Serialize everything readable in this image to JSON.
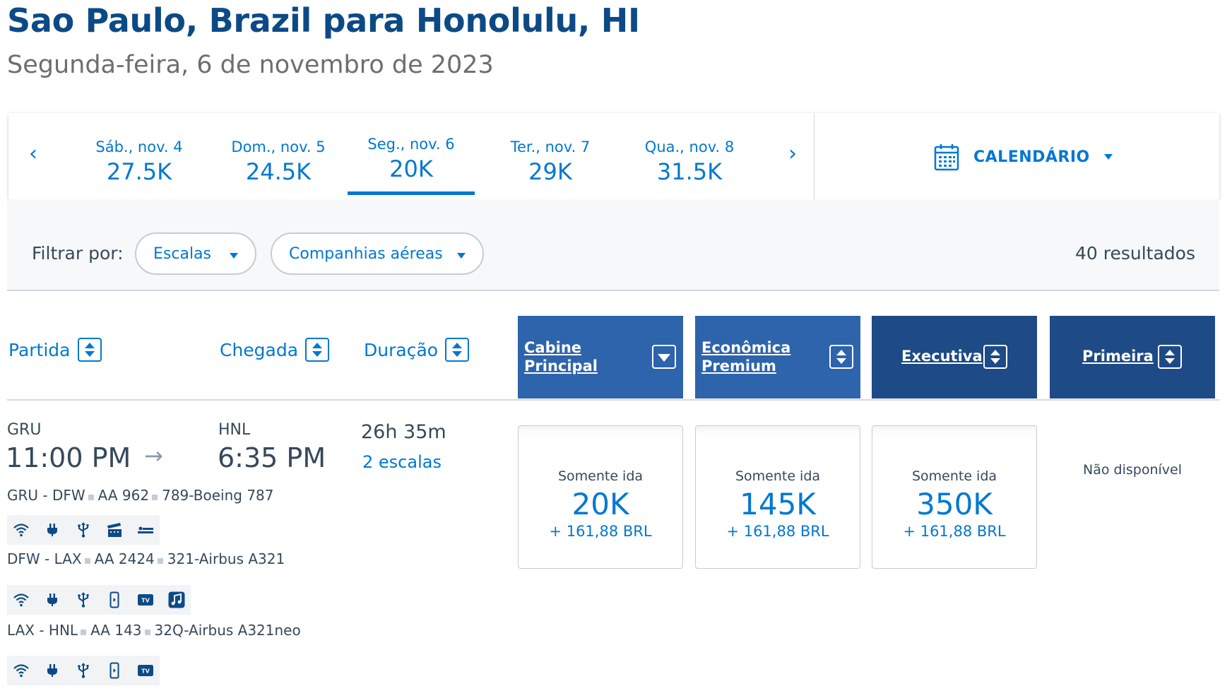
{
  "header": {
    "title": "Sao Paulo, Brazil para Honolulu, HI",
    "subtitle": "Segunda-feira, 6 de novembro de 2023"
  },
  "date_strip": {
    "dates": [
      {
        "day": "Sáb., nov. 4",
        "price": "27.5K"
      },
      {
        "day": "Dom., nov. 5",
        "price": "24.5K"
      },
      {
        "day": "Seg., nov. 6",
        "price": "20K",
        "selected": true
      },
      {
        "day": "Ter., nov. 7",
        "price": "29K"
      },
      {
        "day": "Qua., nov. 8",
        "price": "31.5K"
      }
    ],
    "prev_glyph": "‹",
    "next_glyph": "›",
    "calendar_label": "CALENDÁRIO"
  },
  "filters": {
    "label": "Filtrar por:",
    "stops": "Escalas",
    "airlines": "Companhias aéreas",
    "results": "40 resultados"
  },
  "columns": {
    "departure": "Partida",
    "arrival": "Chegada",
    "duration": "Duração",
    "cabins": [
      {
        "line1": "Cabine",
        "line2": "Principal"
      },
      {
        "line1": "Econômica",
        "line2": "Premium"
      },
      {
        "line1": "Executiva"
      },
      {
        "line1": "Primeira"
      }
    ]
  },
  "flight": {
    "origin": "GRU",
    "destination": "HNL",
    "depart_time": "11:00 PM",
    "arrive_time": "6:35 PM",
    "duration": "26h 35m",
    "stops": "2 escalas",
    "segments": [
      {
        "route": "GRU - DFW",
        "flight": "AA 962",
        "aircraft": "789-Boeing 787",
        "amenities": [
          "wifi-icon",
          "power-outlet-icon",
          "usb-icon",
          "film-icon",
          "lie-flat-seat-icon"
        ]
      },
      {
        "route": "DFW - LAX",
        "flight": "AA 2424",
        "aircraft": "321-Airbus A321",
        "amenities": [
          "wifi-icon",
          "power-outlet-icon",
          "usb-icon",
          "mobile-device-icon",
          "tv-icon",
          "music-icon"
        ]
      },
      {
        "route": "LAX - HNL",
        "flight": "AA 143",
        "aircraft": "32Q-Airbus A321neo",
        "amenities": [
          "wifi-icon",
          "power-outlet-icon",
          "usb-icon",
          "mobile-device-icon",
          "tv-icon"
        ]
      }
    ],
    "fares": [
      {
        "label": "Somente ida",
        "points": "20K",
        "tax": "+ 161,88 BRL"
      },
      {
        "label": "Somente ida",
        "points": "145K",
        "tax": "+ 161,88 BRL"
      },
      {
        "label": "Somente ida",
        "points": "350K",
        "tax": "+ 161,88 BRL"
      }
    ],
    "first_class": "Não disponível"
  },
  "colors": {
    "title": "#0c4a86",
    "link": "#0078d2",
    "cabin_light": "#2d64ac",
    "cabin_dark": "#1e4a86",
    "text": "#36495a"
  }
}
